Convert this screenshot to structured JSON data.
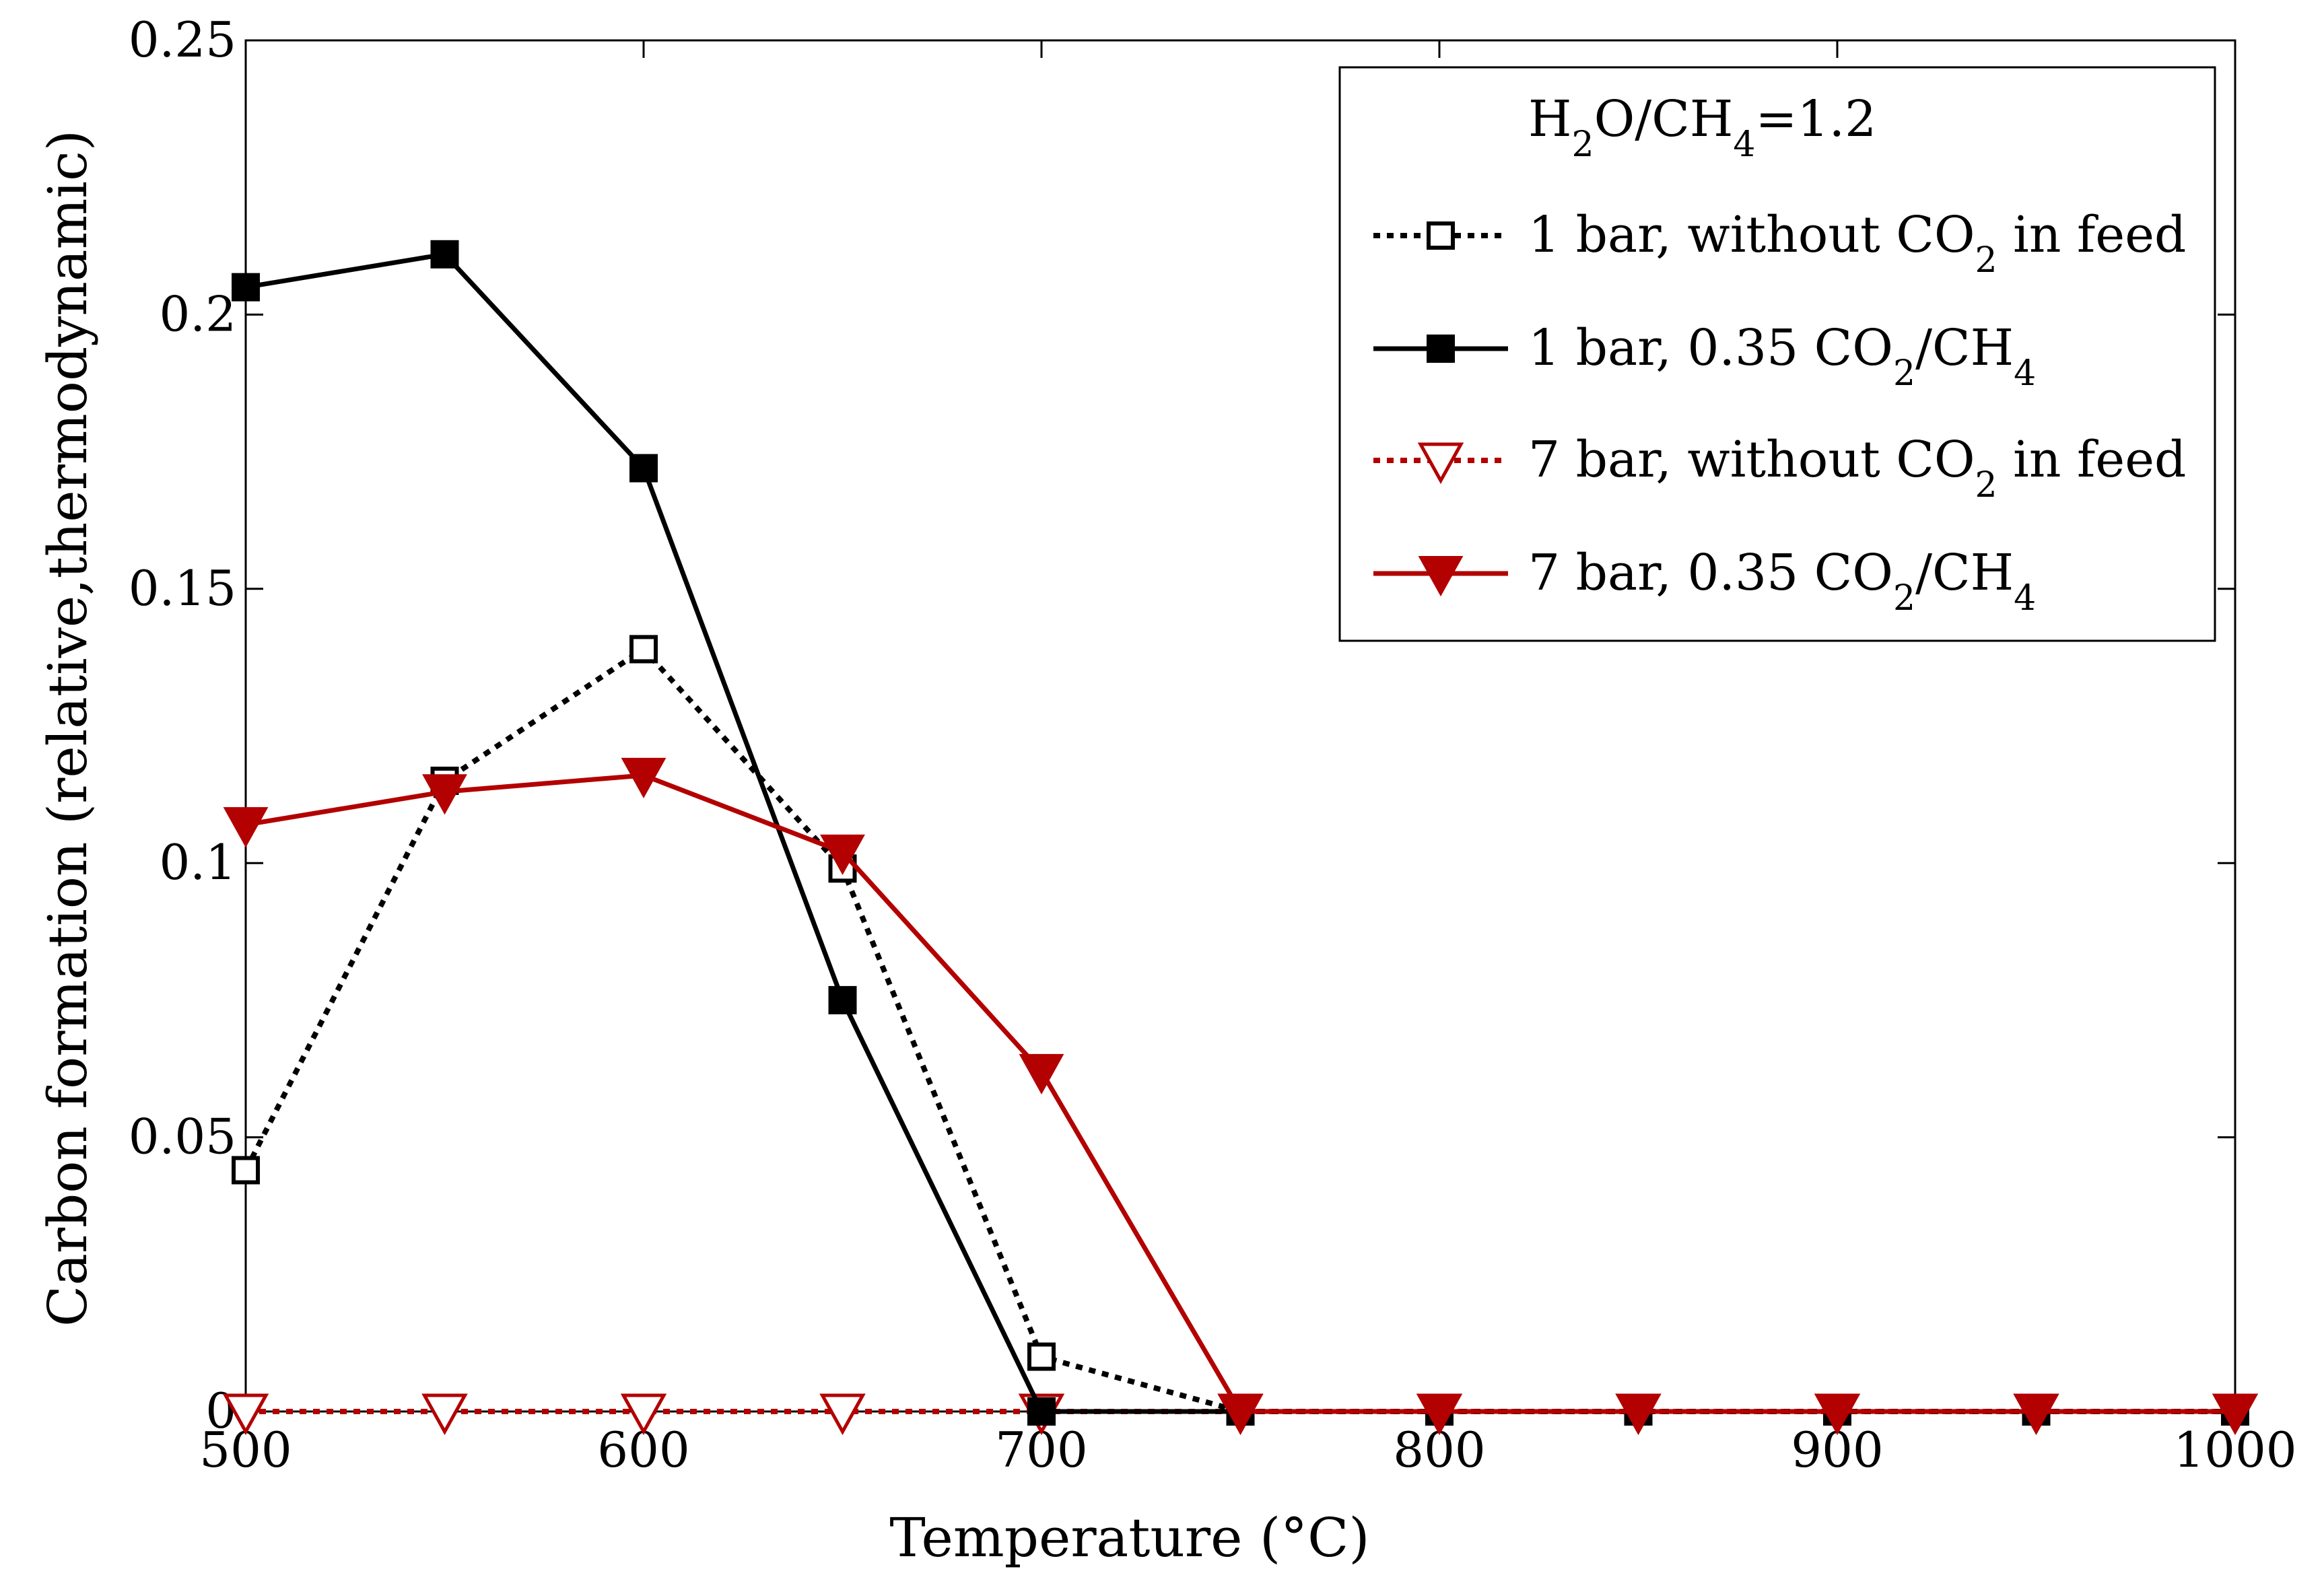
{
  "chart_data": {
    "type": "line",
    "title": "",
    "xlabel": "Temperature (°C)",
    "ylabel": "Carbon formation (relative,thermodynamic)",
    "xlim": [
      500,
      1000
    ],
    "ylim": [
      0,
      0.25
    ],
    "xticks": [
      500,
      600,
      700,
      800,
      900,
      1000
    ],
    "yticks": [
      0,
      0.05,
      0.1,
      0.15,
      0.2,
      0.25
    ],
    "xtick_labels": [
      "500",
      "600",
      "700",
      "800",
      "900",
      "1000"
    ],
    "ytick_labels": [
      "0",
      "0.05",
      "0.1",
      "0.15",
      "0.2",
      "0.25"
    ],
    "grid": false,
    "legend": {
      "placement": "top-right",
      "header": {
        "base": "H",
        "sub1": "2",
        "mid": "O/CH",
        "sub2": "4",
        "tail": "=1.2"
      }
    },
    "x": [
      500,
      550,
      600,
      650,
      700,
      750,
      800,
      850,
      900,
      950,
      1000
    ],
    "series": [
      {
        "name": "1 bar, without CO2 in feed",
        "label_parts": {
          "a": "1 bar, without CO",
          "sub": "2",
          "b": " in feed",
          "sub2": "",
          "c": ""
        },
        "color": "#000000",
        "line": "dotted",
        "marker": "square",
        "filled": false,
        "values": [
          0.044,
          0.115,
          0.139,
          0.099,
          0.01,
          0,
          0,
          0,
          0,
          0,
          0
        ]
      },
      {
        "name": "1 bar, 0.35 CO2/CH4",
        "label_parts": {
          "a": "1 bar, 0.35 CO",
          "sub": "2",
          "b": "/CH",
          "sub2": "4",
          "c": ""
        },
        "color": "#000000",
        "line": "solid",
        "marker": "square",
        "filled": true,
        "values": [
          0.205,
          0.211,
          0.172,
          0.075,
          0,
          0,
          0,
          0,
          0,
          0,
          0
        ]
      },
      {
        "name": "7 bar, without CO2 in feed",
        "label_parts": {
          "a": "7 bar, without CO",
          "sub": "2",
          "b": " in feed",
          "sub2": "",
          "c": ""
        },
        "color": "#b30000",
        "line": "dotted",
        "marker": "triangle-down",
        "filled": false,
        "values": [
          0,
          0,
          0,
          0,
          0,
          0,
          0,
          0,
          0,
          0,
          0
        ]
      },
      {
        "name": "7 bar, 0.35 CO2/CH4",
        "label_parts": {
          "a": "7 bar, 0.35 CO",
          "sub": "2",
          "b": "/CH",
          "sub2": "4",
          "c": ""
        },
        "color": "#b30000",
        "line": "solid",
        "marker": "triangle-down",
        "filled": true,
        "values": [
          0.107,
          0.113,
          0.116,
          0.102,
          0.062,
          0,
          0,
          0,
          0,
          0,
          0
        ]
      }
    ]
  }
}
